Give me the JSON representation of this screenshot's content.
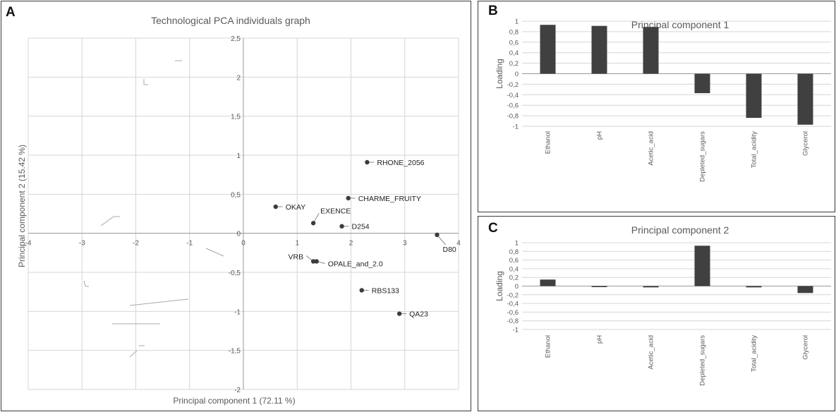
{
  "panels": {
    "a": "A",
    "b": "B",
    "c": "C"
  },
  "colors": {
    "grid": "#d6d6d6",
    "axis": "#9a9a9a",
    "point": "#3c3c3c",
    "bar": "#404040",
    "text": "#595959"
  },
  "chart_data": [
    {
      "type": "scatter",
      "title": "Technological PCA individuals graph",
      "xlabel": "Principal component 1 (72.11 %)",
      "ylabel": "Principal component 2 (15.42 %)",
      "xlim": [
        -4,
        4
      ],
      "ylim": [
        -2,
        2.5
      ],
      "xticks": [
        "-4",
        "-3",
        "-2",
        "-1",
        "0",
        "1",
        "2",
        "3",
        "4"
      ],
      "yticks": [
        "-2",
        "-1,5",
        "-1",
        "-0,5",
        "0",
        "0,5",
        "1",
        "1,5",
        "2",
        "2,5"
      ],
      "grid": true,
      "points": [
        {
          "label": "RHONE_2056",
          "x": 2.3,
          "y": 0.91
        },
        {
          "label": "CHARME_FRUITY",
          "x": 1.95,
          "y": 0.45
        },
        {
          "label": "OKAY",
          "x": 0.6,
          "y": 0.34
        },
        {
          "label": "EXENCE",
          "x": 1.3,
          "y": 0.13
        },
        {
          "label": "D254",
          "x": 1.83,
          "y": 0.09
        },
        {
          "label": "D80",
          "x": 3.6,
          "y": -0.02
        },
        {
          "label": "VRB",
          "x": 1.3,
          "y": -0.36
        },
        {
          "label": "OPALE_and_2.0",
          "x": 1.36,
          "y": -0.36
        },
        {
          "label": "RBS133",
          "x": 2.2,
          "y": -0.73
        },
        {
          "label": "QA23",
          "x": 2.9,
          "y": -1.03
        }
      ]
    },
    {
      "type": "bar",
      "title": "Principal component 1",
      "ylabel": "Loading",
      "ylim": [
        -1,
        1
      ],
      "yticks": [
        "-1",
        "-0,8",
        "-0,6",
        "-0,4",
        "-0,2",
        "0",
        "0,2",
        "0,4",
        "0,6",
        "0,8",
        "1"
      ],
      "categories": [
        "Ethanol",
        "pH",
        "Acetic_acid",
        "Depleted_sugars",
        "Total_acidity",
        "Glycerol"
      ],
      "values": [
        0.93,
        0.91,
        0.89,
        -0.37,
        -0.84,
        -0.97
      ]
    },
    {
      "type": "bar",
      "title": "Principal component 2",
      "ylabel": "Loading",
      "ylim": [
        -1,
        1
      ],
      "yticks": [
        "-1",
        "-0,8",
        "-0,6",
        "-0,4",
        "-0,2",
        "0",
        "0,2",
        "0,4",
        "0,6",
        "0,8",
        "1"
      ],
      "categories": [
        "Ethanol",
        "pH",
        "Acetic_acid",
        "Depleted_sugars",
        "Total_acidity",
        "Glycerol"
      ],
      "values": [
        0.15,
        -0.01,
        -0.03,
        0.93,
        -0.03,
        -0.16
      ]
    }
  ]
}
